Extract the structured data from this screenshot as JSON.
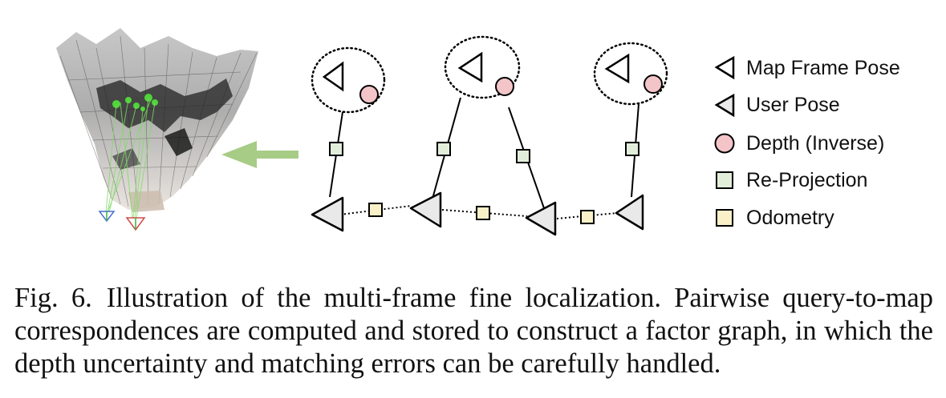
{
  "legend": {
    "map_frame_pose": "Map Frame Pose",
    "user_pose": "User Pose",
    "depth_inverse": "Depth (Inverse)",
    "re_projection": "Re-Projection",
    "odometry": "Odometry"
  },
  "colors": {
    "depth_fill": "#f4c5c8",
    "reprojection_fill": "#e2eed9",
    "odometry_fill": "#fbf1c9",
    "user_pose_fill": "#e9e9e9",
    "arrow": "#a7cc85",
    "match_lines": "#7fdc66"
  },
  "caption": {
    "figure_number": "Fig. 6.",
    "text": "Illustration of the multi-frame fine localization. Pairwise query-to-map correspondences are computed and stored to construct a factor graph, in which the depth uncertainty and matching errors can be carefully handled."
  }
}
